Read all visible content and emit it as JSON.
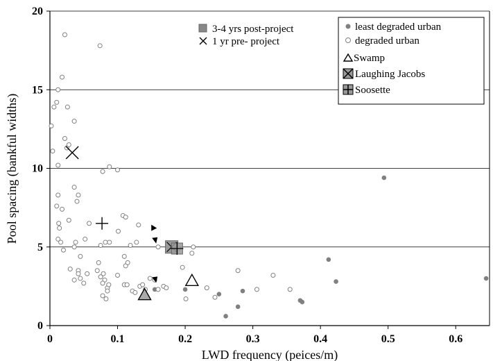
{
  "chart_data": {
    "type": "scatter",
    "title": "",
    "xlabel": "LWD frequency (peices/m)",
    "ylabel": "Pool spacing (bankful widths)",
    "xlim": [
      0,
      0.65
    ],
    "ylim": [
      0,
      20
    ],
    "x_ticks": [
      "0",
      "0.1",
      "0.2",
      "0.3",
      "0.4",
      "0.5",
      "0.6"
    ],
    "y_ticks": [
      "0",
      "5",
      "10",
      "15",
      "20"
    ],
    "grid": "horizontal",
    "legend_position": "top-right",
    "legend_top_label": "3-4 yrs post-project",
    "legend_mid_label": "1 yr pre- project",
    "series": [
      {
        "name": "least degraded urban",
        "marker": "filled-circle",
        "color": "#808080",
        "points": [
          [
            0.26,
            0.6
          ],
          [
            0.25,
            2.0
          ],
          [
            0.278,
            1.2
          ],
          [
            0.285,
            2.2
          ],
          [
            0.37,
            1.6
          ],
          [
            0.373,
            1.5
          ],
          [
            0.412,
            4.2
          ],
          [
            0.423,
            2.8
          ],
          [
            0.494,
            9.4
          ],
          [
            0.645,
            3.0
          ],
          [
            0.155,
            2.3
          ],
          [
            0.2,
            2.3
          ]
        ]
      },
      {
        "name": "degraded urban",
        "marker": "open-circle",
        "color": "#808080",
        "points": [
          [
            0.022,
            18.5
          ],
          [
            0.074,
            17.8
          ],
          [
            0.018,
            15.8
          ],
          [
            0.012,
            15.0
          ],
          [
            0.01,
            14.2
          ],
          [
            0.006,
            13.9
          ],
          [
            0.026,
            13.9
          ],
          [
            0.036,
            13.0
          ],
          [
            0.002,
            12.7
          ],
          [
            0.022,
            11.9
          ],
          [
            0.004,
            11.1
          ],
          [
            0.025,
            11.3
          ],
          [
            0.028,
            11.5
          ],
          [
            0.012,
            10.2
          ],
          [
            0.088,
            10.1
          ],
          [
            0.1,
            9.9
          ],
          [
            0.078,
            9.8
          ],
          [
            0.036,
            8.8
          ],
          [
            0.012,
            8.3
          ],
          [
            0.042,
            8.3
          ],
          [
            0.04,
            7.9
          ],
          [
            0.01,
            7.6
          ],
          [
            0.018,
            7.4
          ],
          [
            0.108,
            7.0
          ],
          [
            0.112,
            6.9
          ],
          [
            0.028,
            6.7
          ],
          [
            0.058,
            6.5
          ],
          [
            0.013,
            6.5
          ],
          [
            0.014,
            6.2
          ],
          [
            0.101,
            6.0
          ],
          [
            0.131,
            6.4
          ],
          [
            0.119,
            5.1
          ],
          [
            0.012,
            5.5
          ],
          [
            0.016,
            5.3
          ],
          [
            0.036,
            5.0
          ],
          [
            0.038,
            5.3
          ],
          [
            0.052,
            5.5
          ],
          [
            0.075,
            5.1
          ],
          [
            0.082,
            5.3
          ],
          [
            0.088,
            5.3
          ],
          [
            0.128,
            5.3
          ],
          [
            0.16,
            5.0
          ],
          [
            0.212,
            5.0
          ],
          [
            0.21,
            4.6
          ],
          [
            0.19,
            4.9
          ],
          [
            0.02,
            4.8
          ],
          [
            0.045,
            4.4
          ],
          [
            0.11,
            4.4
          ],
          [
            0.03,
            3.6
          ],
          [
            0.042,
            3.5
          ],
          [
            0.042,
            3.3
          ],
          [
            0.055,
            3.3
          ],
          [
            0.07,
            3.5
          ],
          [
            0.072,
            4.0
          ],
          [
            0.112,
            3.8
          ],
          [
            0.115,
            4.0
          ],
          [
            0.196,
            3.7
          ],
          [
            0.1,
            3.2
          ],
          [
            0.075,
            3.1
          ],
          [
            0.079,
            3.3
          ],
          [
            0.081,
            2.9
          ],
          [
            0.036,
            2.9
          ],
          [
            0.045,
            3.0
          ],
          [
            0.05,
            2.7
          ],
          [
            0.078,
            2.7
          ],
          [
            0.085,
            2.4
          ],
          [
            0.087,
            2.6
          ],
          [
            0.11,
            2.6
          ],
          [
            0.114,
            2.6
          ],
          [
            0.122,
            2.2
          ],
          [
            0.126,
            2.1
          ],
          [
            0.133,
            2.5
          ],
          [
            0.141,
            2.3
          ],
          [
            0.148,
            3.0
          ],
          [
            0.155,
            2.9
          ],
          [
            0.168,
            2.5
          ],
          [
            0.172,
            2.4
          ],
          [
            0.137,
            2.6
          ],
          [
            0.16,
            2.3
          ],
          [
            0.085,
            2.2
          ],
          [
            0.078,
            1.9
          ],
          [
            0.083,
            1.7
          ],
          [
            0.201,
            1.7
          ],
          [
            0.232,
            2.4
          ],
          [
            0.244,
            1.8
          ],
          [
            0.278,
            3.5
          ],
          [
            0.306,
            2.3
          ],
          [
            0.33,
            3.2
          ],
          [
            0.355,
            2.3
          ]
        ]
      }
    ],
    "named_sites": [
      {
        "name": "Swamp",
        "marker": "open-triangle",
        "points": [
          [
            0.21,
            2.9
          ]
        ]
      },
      {
        "name": "Laughing Jacobs",
        "marker": "square-with-x",
        "points": [
          [
            0.18,
            5.0
          ]
        ]
      },
      {
        "name": "Soosette",
        "marker": "square-with-cross",
        "points": [
          [
            0.188,
            4.9
          ]
        ]
      }
    ],
    "pre_project": {
      "marker": "x",
      "points": [
        [
          0.033,
          11.0
        ]
      ]
    },
    "post_project_overlays": [
      {
        "marker": "filled-gray-triangle",
        "points": [
          [
            0.14,
            2.0
          ]
        ]
      },
      {
        "marker": "plus",
        "points": [
          [
            0.077,
            6.5
          ]
        ]
      }
    ],
    "annotation_arrows": [
      {
        "points": [
          [
            0.153,
            6.2
          ]
        ],
        "direction": "right"
      },
      {
        "points": [
          [
            0.155,
            5.4
          ]
        ],
        "direction": "down-left"
      },
      {
        "points": [
          [
            0.155,
            2.9
          ]
        ],
        "direction": "down-left"
      }
    ],
    "legend": {
      "least": "least degraded urban",
      "degraded": "degraded urban",
      "swamp": "Swamp",
      "laughing": "Laughing Jacobs",
      "soosette": "Soosette"
    }
  }
}
